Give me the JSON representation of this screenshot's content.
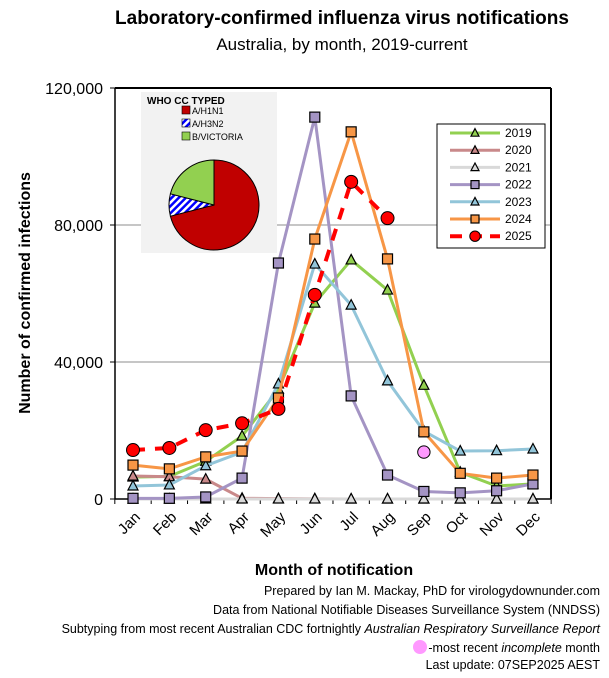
{
  "chart_data": {
    "type": "line",
    "title": "Laboratory-confirmed influenza virus notifications",
    "subtitle": "Australia, by month, 2019-current",
    "xlabel": "Month of notification",
    "ylabel": "Number of confirmed infections",
    "ylim": [
      0,
      120000
    ],
    "yticks": [
      0,
      40000,
      80000,
      120000
    ],
    "ytick_labels": [
      "0",
      "40,000",
      "80,000",
      "120,000"
    ],
    "grid": "horizontal",
    "legend_position": "top-right",
    "categories": [
      "Jan",
      "Feb",
      "Mar",
      "Apr",
      "May",
      "Jun",
      "Jul",
      "Aug",
      "Sep",
      "Oct",
      "Nov",
      "Dec"
    ],
    "series": [
      {
        "name": "2019",
        "color": "#92d050",
        "marker": "triangle",
        "marker_fill": "#92d050",
        "dashed": false,
        "values": [
          6400,
          6600,
          11000,
          18400,
          32000,
          57200,
          69800,
          61000,
          33200,
          7800,
          3800,
          4400
        ]
      },
      {
        "name": "2020",
        "color": "#c9898a",
        "marker": "triangle",
        "marker_fill": "#c9898a",
        "dashed": false,
        "values": [
          6700,
          6500,
          5800,
          200,
          100,
          50,
          0,
          0,
          0,
          0,
          0,
          0
        ]
      },
      {
        "name": "2021",
        "color": "#d9d9d9",
        "marker": "triangle",
        "marker_fill": "#d9d9d9",
        "dashed": false,
        "values": [
          0,
          0,
          0,
          0,
          0,
          0,
          0,
          0,
          0,
          0,
          0,
          0
        ]
      },
      {
        "name": "2022",
        "color": "#a494c4",
        "marker": "square",
        "marker_fill": "#a494c4",
        "dashed": false,
        "values": [
          200,
          200,
          600,
          6100,
          68900,
          111500,
          30100,
          7000,
          2200,
          1800,
          2400,
          4400
        ]
      },
      {
        "name": "2023",
        "color": "#92c5d9",
        "marker": "triangle",
        "marker_fill": "#92c5d9",
        "dashed": false,
        "values": [
          3800,
          4100,
          9700,
          13700,
          33600,
          68600,
          56600,
          34500,
          19800,
          14000,
          14100,
          14600
        ]
      },
      {
        "name": "2024",
        "color": "#f79646",
        "marker": "square",
        "marker_fill": "#f79646",
        "dashed": false,
        "values": [
          9900,
          8800,
          12300,
          14000,
          29500,
          75900,
          107200,
          70100,
          19600,
          7500,
          6100,
          7000
        ]
      },
      {
        "name": "2025",
        "color": "#ff0000",
        "marker": "circle",
        "marker_fill": "#ff0000",
        "dashed": true,
        "values": [
          14300,
          14900,
          20100,
          22100,
          26300,
          59600,
          92600,
          82000,
          13700,
          null,
          null,
          null
        ],
        "incomplete_month": "Sep",
        "incomplete_color": "#ff99ff"
      }
    ],
    "inset_pie": {
      "title": "WHO CC TYPED",
      "slices": [
        {
          "label": "A/H1N1",
          "value": 71,
          "color": "#c00000",
          "pattern": "solid"
        },
        {
          "label": "A/H3N2",
          "value": 8,
          "color": "#0000ff",
          "pattern": "diagonal-stripes"
        },
        {
          "label": "B/VICTORIA",
          "value": 21,
          "color": "#92d050",
          "pattern": "solid"
        }
      ]
    }
  },
  "footer": {
    "line1": "Prepared by Ian M. Mackay, PhD for virologydownunder.com",
    "line2": "Data from National Notifiable Diseases Surveillance System (NNDSS)",
    "line3_prefix": "Subtyping from most recent Australian CDC fortnightly ",
    "line3_italic": "Australian Respiratory Surveillance Report",
    "line4_prefix": "-most recent ",
    "line4_italic": "incomplete",
    "line4_suffix": " month",
    "line5": "Last update: 07SEP2025 AEST"
  }
}
